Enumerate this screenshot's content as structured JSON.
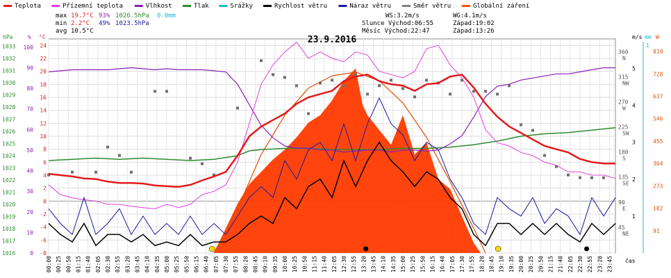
{
  "chart_data": {
    "type": "line",
    "title": "23.9.2016",
    "legend": [
      {
        "label": "Teplota",
        "color": "#e41a1c"
      },
      {
        "label": "Přízemní teplota",
        "color": "#e040e0"
      },
      {
        "label": "Vlhkost",
        "color": "#8a1fb4"
      },
      {
        "label": "Tlak",
        "color": "#2e8b2e"
      },
      {
        "label": "Srážky",
        "color": "#1fb4d4"
      },
      {
        "label": "Rychlost větru",
        "color": "#000000"
      },
      {
        "label": "Náraz větru",
        "color": "#1a1aa0"
      },
      {
        "label": "Směr větru",
        "color": "#808080"
      },
      {
        "label": "Globální záření",
        "color": "#ff5000"
      }
    ],
    "stats": {
      "max": {
        "label": "max",
        "temp": "19.7°C",
        "hum": "93%",
        "press": "1026.5hPa",
        "rain": "0.0mm"
      },
      "min": {
        "label": "min",
        "temp": "2.2°C",
        "hum": "49%",
        "press": "1023.5hPa"
      },
      "avg": {
        "label": "avg",
        "temp": "10.5°C"
      }
    },
    "info": {
      "ws": "WS:3.2m/s",
      "wg": "WG:4.1m/s",
      "sun": "Slunce Východ:06:55",
      "sunset": "Západ:19:02",
      "moon": "Měsíc Východ:22:47",
      "moonset": "Západ:13:26"
    },
    "axes": {
      "hpa_label": "hPa",
      "pct_label": "%",
      "temp_label": "°C",
      "ms_label": "m/s",
      "mm_label": "mm",
      "w_label": "W",
      "time_label": "čas",
      "hpa_ticks": [
        "1033",
        "1032",
        "1031",
        "1030",
        "1029",
        "1028",
        "1027",
        "1026",
        "1025",
        "1024",
        "1023",
        "1022",
        "1021",
        "1020",
        "1019",
        "1018",
        "1017",
        "1016"
      ],
      "pct_ticks": [
        "100",
        "90",
        "80",
        "70",
        "60",
        "50",
        "40",
        "30",
        "20",
        "10",
        "0"
      ],
      "temp_ticks": [
        "24",
        "22",
        "20",
        "18",
        "16",
        "14",
        "12",
        "10",
        "8",
        "6",
        "4",
        "2",
        "0",
        "-2",
        "-4",
        "-6",
        "-8"
      ],
      "dir_ticks": [
        [
          "360",
          "N"
        ],
        [
          "315",
          "NW"
        ],
        [
          "270",
          "W"
        ],
        [
          "225",
          "SW"
        ],
        [
          "180",
          "S"
        ],
        [
          "135",
          "SE"
        ],
        [
          "90",
          "E"
        ],
        [
          "45",
          "NE"
        ]
      ],
      "ms_ticks": [
        "5",
        "4",
        "3",
        "2",
        "1"
      ],
      "mm_ticks": [
        "1"
      ],
      "w_ticks": [
        "819",
        "728",
        "637",
        "546",
        "455",
        "364",
        "273",
        "182",
        "91"
      ],
      "time_ticks": [
        "00:00",
        "00:25",
        "00:50",
        "01:15",
        "01:40",
        "02:05",
        "02:30",
        "02:55",
        "03:20",
        "03:45",
        "04:10",
        "04:35",
        "05:00",
        "05:25",
        "05:50",
        "06:15",
        "06:40",
        "07:05",
        "07:30",
        "07:55",
        "08:20",
        "08:45",
        "09:10",
        "09:35",
        "10:00",
        "10:25",
        "10:50",
        "11:15",
        "11:40",
        "12:05",
        "12:30",
        "12:55",
        "13:20",
        "13:45",
        "14:10",
        "14:35",
        "15:00",
        "15:25",
        "15:50",
        "16:15",
        "16:40",
        "17:05",
        "17:30",
        "17:55",
        "18:20",
        "18:45",
        "19:10",
        "19:35",
        "20:00",
        "20:25",
        "20:50",
        "21:15",
        "21:40",
        "22:05",
        "22:30",
        "22:55",
        "23:20",
        "23:45"
      ]
    },
    "series": {
      "temperature_c": {
        "x_hours": [
          0,
          0.5,
          1,
          1.5,
          2,
          2.5,
          3,
          3.5,
          4,
          4.5,
          5,
          5.5,
          6,
          6.5,
          7,
          7.5,
          8,
          8.5,
          9,
          9.5,
          10,
          10.5,
          11,
          11.5,
          12,
          12.5,
          13,
          13.5,
          14,
          14.5,
          15,
          15.5,
          16,
          16.5,
          17,
          17.5,
          18,
          18.5,
          19,
          19.5,
          20,
          20.5,
          21,
          21.5,
          22,
          22.5,
          23,
          23.5,
          24
        ],
        "values": [
          4.2,
          4,
          3.8,
          3.5,
          3.4,
          3,
          2.8,
          2.8,
          2.7,
          2.4,
          2.3,
          2.2,
          2.5,
          3.2,
          3.8,
          4.5,
          7,
          10,
          11.5,
          12.5,
          13.5,
          15,
          16,
          16.5,
          17,
          18.5,
          19.2,
          19.5,
          18.5,
          18,
          17.8,
          17,
          18,
          18.2,
          19.2,
          19.5,
          17.5,
          15,
          13,
          11.5,
          10.5,
          9.5,
          8.5,
          8,
          7.5,
          6.5,
          6,
          5.8,
          5.8
        ]
      },
      "ground_temp_c": {
        "x_hours": [
          0,
          0.5,
          1,
          1.5,
          2,
          2.5,
          3,
          3.5,
          4,
          4.5,
          5,
          5.5,
          6,
          6.5,
          7,
          7.5,
          8,
          8.5,
          9,
          9.5,
          10,
          10.5,
          11,
          11.5,
          12,
          12.5,
          13,
          13.5,
          14,
          14.5,
          15,
          15.5,
          16,
          16.5,
          17,
          17.5,
          18,
          18.5,
          19,
          19.5,
          20,
          20.5,
          21,
          21.5,
          22,
          22.5,
          23,
          23.5,
          24
        ],
        "values": [
          2.5,
          1,
          0.5,
          0.2,
          0,
          -0.5,
          -0.5,
          -0.8,
          -1,
          -1.2,
          -0.5,
          -1,
          -0.5,
          1,
          1.5,
          2.5,
          6,
          12,
          18,
          21,
          23,
          24.5,
          22,
          23,
          22,
          21.5,
          23,
          22.5,
          20,
          19.5,
          19,
          20,
          23.5,
          24,
          21,
          19,
          16,
          11,
          9,
          8.5,
          7.5,
          7,
          6,
          5.5,
          4.5,
          4.5,
          4,
          4,
          3.5
        ]
      },
      "humidity_pct": {
        "x_hours": [
          0,
          0.5,
          1,
          1.5,
          2,
          2.5,
          3,
          3.5,
          4,
          4.5,
          5,
          5.5,
          6,
          6.5,
          7,
          7.5,
          8,
          8.5,
          9,
          9.5,
          10,
          10.5,
          11,
          11.5,
          12,
          12.5,
          13,
          13.5,
          14,
          14.5,
          15,
          15.5,
          16,
          16.5,
          17,
          17.5,
          18,
          18.5,
          19,
          19.5,
          20,
          20.5,
          21,
          21.5,
          22,
          22.5,
          23,
          23.5,
          24
        ],
        "values": [
          88,
          88.5,
          89,
          89,
          89,
          89,
          89.5,
          90,
          89.5,
          89,
          89.5,
          89,
          89,
          89,
          88.5,
          88,
          82,
          72,
          62,
          56,
          52,
          51,
          51,
          50,
          50,
          49,
          49.5,
          50,
          50,
          49,
          50,
          50,
          49.5,
          50,
          53,
          57,
          66,
          76,
          81,
          82,
          84,
          85,
          86,
          87,
          87,
          88,
          89,
          90,
          90
        ]
      },
      "pressure_hpa": {
        "x_hours": [
          0,
          1,
          2,
          3,
          4,
          5,
          6,
          7,
          8,
          8.5,
          9,
          10,
          11,
          12,
          13,
          14,
          15,
          16,
          17,
          18,
          19,
          20,
          21,
          22,
          23,
          24
        ],
        "values": [
          1023.6,
          1023.7,
          1023.8,
          1023.7,
          1023.8,
          1023.7,
          1023.6,
          1023.7,
          1024.0,
          1024.4,
          1024.5,
          1024.6,
          1024.6,
          1024.5,
          1024.5,
          1024.5,
          1024.6,
          1024.6,
          1024.7,
          1024.9,
          1025.2,
          1025.6,
          1025.8,
          1025.9,
          1026.1,
          1026.3
        ]
      },
      "wind_speed_ms": {
        "x_hours": [
          0,
          0.5,
          1,
          1.5,
          2,
          2.5,
          3,
          3.5,
          4,
          4.5,
          5,
          5.5,
          6,
          6.5,
          7,
          7.5,
          8,
          8.5,
          9,
          9.5,
          10,
          10.5,
          11,
          11.5,
          12,
          12.5,
          13,
          13.5,
          14,
          14.5,
          15,
          15.5,
          16,
          16.5,
          17,
          17.5,
          18,
          18.5,
          19,
          19.5,
          20,
          20.5,
          21,
          21.5,
          22,
          22.5,
          23,
          23.5,
          24
        ],
        "values": [
          0.8,
          0.5,
          0.3,
          0.8,
          0.2,
          0.5,
          0.5,
          0.3,
          0.5,
          0.2,
          0.3,
          0.2,
          0.5,
          0.2,
          0.3,
          0.3,
          0.5,
          0.8,
          1,
          0.8,
          1.5,
          1.2,
          1.8,
          2,
          1.5,
          2.5,
          1.8,
          2.5,
          3,
          2.5,
          2.2,
          1.8,
          2.2,
          2,
          1.5,
          1.2,
          0.5,
          0.2,
          0.8,
          0.8,
          0.5,
          0.8,
          0.5,
          0.8,
          0.5,
          0.3,
          0.8,
          0.5,
          0.8
        ]
      },
      "wind_gust_ms": {
        "x_hours": [
          0,
          0.5,
          1,
          1.5,
          2,
          2.5,
          3,
          3.5,
          4,
          4.5,
          5,
          5.5,
          6,
          6.5,
          7,
          7.5,
          8,
          8.5,
          9,
          9.5,
          10,
          10.5,
          11,
          11.5,
          12,
          12.5,
          13,
          13.5,
          14,
          14.5,
          15,
          15.5,
          16,
          16.5,
          17,
          17.5,
          18,
          18.5,
          19,
          19.5,
          20,
          20.5,
          21,
          21.5,
          22,
          22.5,
          23,
          23.5,
          24
        ],
        "values": [
          1.2,
          0.8,
          0.5,
          1.5,
          0.5,
          0.8,
          1.2,
          0.5,
          1,
          0.5,
          0.8,
          0.5,
          1,
          0.5,
          0.8,
          0.5,
          1,
          1.5,
          1.8,
          1.5,
          2.5,
          2,
          2.8,
          3,
          2.5,
          3.5,
          2.5,
          3.5,
          4.2,
          3.5,
          3.2,
          2.5,
          3,
          2.8,
          2,
          1.5,
          0.8,
          0.5,
          1.5,
          1.2,
          1,
          1.5,
          0.8,
          1.2,
          1,
          0.5,
          1.5,
          1,
          1.5
        ]
      },
      "wind_dir_deg": {
        "x_hours": [
          0,
          1,
          2,
          2.5,
          3,
          3.5,
          4.5,
          5,
          6,
          6.5,
          7,
          8,
          9,
          9.5,
          10,
          10.5,
          11,
          11.5,
          12,
          12.5,
          13,
          13.5,
          14,
          14.5,
          15,
          15.5,
          16,
          16.5,
          17,
          17.5,
          18,
          18.5,
          19,
          19.5,
          20,
          20.5,
          21,
          21.5,
          22,
          22.5,
          23,
          23.5
        ],
        "values": [
          140,
          145,
          145,
          190,
          175,
          145,
          290,
          290,
          170,
          160,
          140,
          260,
          345,
          320,
          315,
          300,
          250,
          305,
          310,
          300,
          320,
          285,
          300,
          310,
          295,
          280,
          310,
          305,
          285,
          310,
          290,
          290,
          285,
          300,
          230,
          220,
          175,
          155,
          140,
          135,
          135,
          135
        ]
      },
      "radiation_w": {
        "x_hours": [
          0,
          7,
          7.3,
          8,
          8.5,
          9,
          9.5,
          10,
          10.5,
          11,
          11.5,
          12,
          12.5,
          13,
          13.3,
          13.5,
          14,
          14.5,
          15,
          15.5,
          16,
          16.5,
          17,
          17.5,
          18,
          18.3,
          24
        ],
        "values": [
          0,
          0,
          60,
          200,
          280,
          330,
          380,
          420,
          470,
          530,
          560,
          620,
          700,
          750,
          600,
          560,
          500,
          440,
          560,
          400,
          450,
          300,
          260,
          150,
          40,
          0,
          0
        ]
      },
      "radiation_clear_sky_w": {
        "x_hours": [
          7,
          8,
          9,
          10,
          11,
          12,
          13,
          14,
          15,
          16,
          17,
          18,
          18.5
        ],
        "values": [
          0,
          180,
          400,
          560,
          670,
          720,
          735,
          700,
          610,
          470,
          290,
          100,
          0
        ]
      }
    },
    "xlim_hours": [
      0,
      24
    ],
    "temp_ylim": [
      -8,
      25
    ],
    "pct_ylim": [
      0,
      104
    ]
  }
}
